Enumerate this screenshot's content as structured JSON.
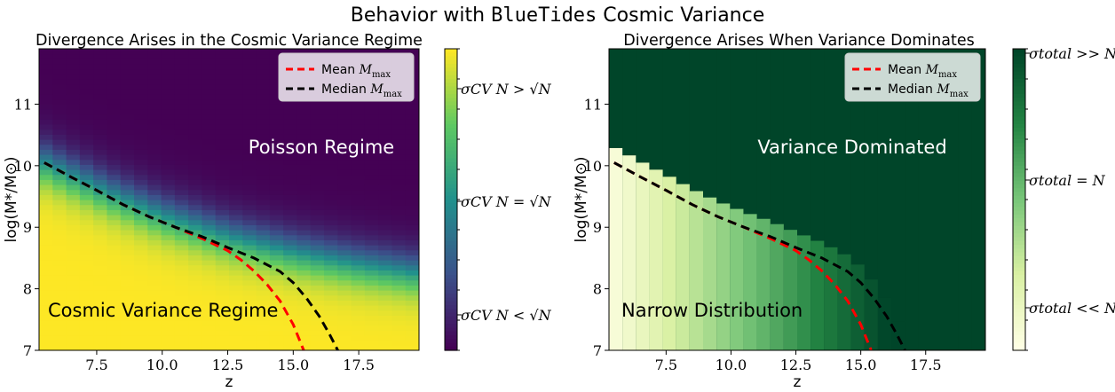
{
  "figure": {
    "suptitle_prefix": "Behavior with ",
    "suptitle_code": "BlueTides",
    "suptitle_suffix": " Cosmic Variance"
  },
  "chart_data": [
    {
      "type": "heatmap",
      "title": "Divergence Arises in the Cosmic Variance Regime",
      "xlabel": "z",
      "ylabel": "log(M*/M⊙)",
      "xlim": [
        5.3,
        19.8
      ],
      "ylim": [
        7.0,
        11.9
      ],
      "xticks": [
        7.5,
        10.0,
        12.5,
        15.0,
        17.5
      ],
      "xtick_labels": [
        "7.5",
        "10.0",
        "12.5",
        "15.0",
        "17.5"
      ],
      "yticks": [
        7,
        8,
        9,
        10,
        11
      ],
      "ytick_labels": [
        "7",
        "8",
        "9",
        "10",
        "11"
      ],
      "colormap": "viridis",
      "colorbar_labels": [
        "σCV N > √N",
        "σCV N = √N",
        "σCV N < √N"
      ],
      "region_labels": [
        "Poisson Regime",
        "Cosmic Variance Regime"
      ],
      "legend": {
        "placement": "top-right",
        "entries": [
          {
            "name": "Mean M_max",
            "color": "#ff0000"
          },
          {
            "name": "Median M_max",
            "color": "#000000"
          }
        ]
      },
      "transition_boundary": {
        "z": [
          5.5,
          8.0,
          10.0,
          12.5,
          15.0,
          17.5,
          19.8
        ],
        "log_mstar": [
          10.05,
          9.55,
          9.2,
          8.85,
          8.6,
          8.4,
          8.25
        ]
      },
      "series": [
        {
          "name": "Mean M_max",
          "x": [
            5.5,
            6.5,
            7.5,
            8.5,
            9.5,
            10.5,
            11.5,
            12.5,
            13.0,
            13.5,
            14.0,
            14.5,
            15.0,
            15.4
          ],
          "y": [
            10.05,
            9.82,
            9.6,
            9.37,
            9.17,
            9.0,
            8.82,
            8.62,
            8.47,
            8.29,
            8.07,
            7.8,
            7.42,
            7.0
          ]
        },
        {
          "name": "Median M_max",
          "x": [
            5.5,
            6.5,
            7.5,
            8.5,
            9.5,
            10.5,
            11.5,
            12.5,
            13.5,
            14.5,
            15.0,
            15.5,
            16.0,
            16.4,
            16.7
          ],
          "y": [
            10.05,
            9.82,
            9.6,
            9.37,
            9.17,
            9.0,
            8.85,
            8.67,
            8.5,
            8.28,
            8.1,
            7.85,
            7.55,
            7.25,
            7.0
          ]
        }
      ]
    },
    {
      "type": "heatmap",
      "title": "Divergence Arises When Variance Dominates",
      "xlabel": "z",
      "ylabel": "log(M*/M⊙)",
      "xlim": [
        5.3,
        19.8
      ],
      "ylim": [
        7.0,
        11.9
      ],
      "xticks": [
        7.5,
        10.0,
        12.5,
        15.0,
        17.5
      ],
      "xtick_labels": [
        "7.5",
        "10.0",
        "12.5",
        "15.0",
        "17.5"
      ],
      "yticks": [
        7,
        8,
        9,
        10,
        11
      ],
      "ytick_labels": [
        "7",
        "8",
        "9",
        "10",
        "11"
      ],
      "colormap": "YlGn",
      "colorbar_labels": [
        "σtotal >> N",
        "σtotal = N",
        "σtotal << N"
      ],
      "region_labels": [
        "Variance Dominated",
        "Narrow Distribution"
      ],
      "legend": {
        "placement": "top-right",
        "entries": [
          {
            "name": "Mean M_max",
            "color": "#ff0000"
          },
          {
            "name": "Median M_max",
            "color": "#000000"
          }
        ]
      },
      "series": [
        {
          "name": "Mean M_max",
          "x": [
            5.5,
            6.5,
            7.5,
            8.5,
            9.5,
            10.5,
            11.5,
            12.5,
            13.0,
            13.5,
            14.0,
            14.5,
            15.0,
            15.4
          ],
          "y": [
            10.05,
            9.82,
            9.6,
            9.37,
            9.17,
            9.0,
            8.82,
            8.62,
            8.47,
            8.29,
            8.07,
            7.8,
            7.42,
            7.0
          ]
        },
        {
          "name": "Median M_max",
          "x": [
            5.5,
            6.5,
            7.5,
            8.5,
            9.5,
            10.5,
            11.5,
            12.5,
            13.5,
            14.5,
            15.0,
            15.5,
            16.0,
            16.4,
            16.7
          ],
          "y": [
            10.05,
            9.82,
            9.6,
            9.37,
            9.17,
            9.0,
            8.85,
            8.67,
            8.5,
            8.28,
            8.1,
            7.85,
            7.55,
            7.25,
            7.0
          ]
        }
      ]
    }
  ]
}
